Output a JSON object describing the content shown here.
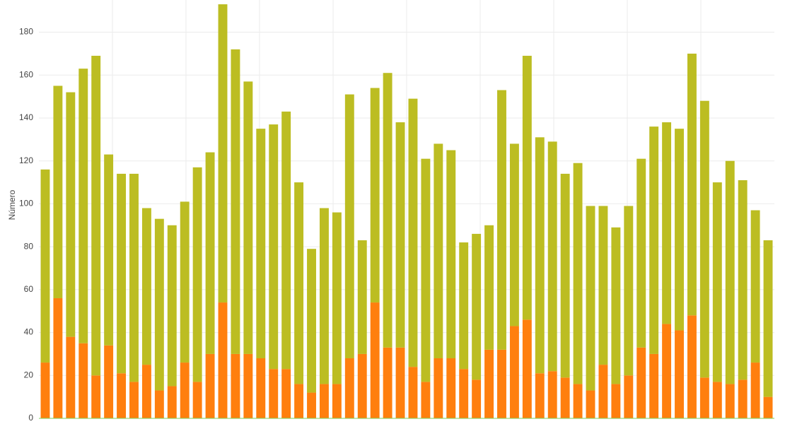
{
  "chart_data": {
    "type": "stacked-bar",
    "y_label": "Número",
    "categories": [
      null,
      null,
      null,
      null,
      null,
      null,
      null,
      null,
      null,
      null,
      null,
      null,
      null,
      null,
      null,
      null,
      null,
      null,
      null,
      null,
      null,
      null,
      null,
      null,
      null,
      null,
      null,
      null,
      null,
      null,
      null,
      null,
      null,
      null,
      null,
      null,
      null,
      null,
      null,
      null,
      null,
      null,
      null,
      null,
      null,
      null,
      null,
      null,
      null,
      null,
      null,
      null,
      null,
      null,
      null,
      null,
      null,
      null
    ],
    "series": [
      {
        "color": "#ff7f0e",
        "values": [
          26,
          56,
          38,
          35,
          20,
          34,
          21,
          17,
          25,
          13,
          15,
          26,
          17,
          30,
          54,
          30,
          30,
          28,
          23,
          23,
          16,
          12,
          16,
          16,
          28,
          30,
          54,
          33,
          33,
          24,
          17,
          28,
          28,
          23,
          18,
          32,
          32,
          43,
          46,
          21,
          22,
          19,
          16,
          13,
          25,
          16,
          20,
          33,
          30,
          44,
          41,
          48,
          19,
          17,
          16,
          18,
          26,
          10
        ]
      },
      {
        "color": "#bcbd22",
        "values": [
          90,
          99,
          114,
          128,
          149,
          89,
          93,
          97,
          73,
          80,
          75,
          75,
          100,
          94,
          139,
          142,
          127,
          107,
          114,
          120,
          94,
          67,
          82,
          80,
          123,
          53,
          100,
          128,
          105,
          125,
          104,
          100,
          97,
          59,
          68,
          58,
          121,
          85,
          123,
          110,
          107,
          95,
          103,
          86,
          74,
          73,
          79,
          88,
          106,
          94,
          94,
          122,
          129,
          93,
          104,
          93,
          71,
          73
        ]
      }
    ],
    "ylim": [
      0,
      195
    ],
    "yticks": [
      0,
      20,
      40,
      60,
      80,
      100,
      120,
      140,
      160,
      180
    ],
    "grid": true
  }
}
